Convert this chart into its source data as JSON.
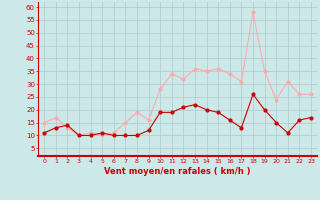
{
  "x": [
    0,
    1,
    2,
    3,
    4,
    5,
    6,
    7,
    8,
    9,
    10,
    11,
    12,
    13,
    14,
    15,
    16,
    17,
    18,
    19,
    20,
    21,
    22,
    23
  ],
  "wind_avg": [
    11,
    13,
    14,
    10,
    10,
    11,
    10,
    10,
    10,
    12,
    19,
    19,
    21,
    22,
    20,
    19,
    16,
    13,
    26,
    20,
    15,
    11,
    16,
    17
  ],
  "wind_gust": [
    15,
    17,
    13,
    10,
    11,
    10,
    11,
    15,
    19,
    16,
    28,
    34,
    32,
    36,
    35,
    36,
    34,
    31,
    58,
    35,
    24,
    31,
    26,
    26
  ],
  "avg_color": "#cc0000",
  "gust_color": "#ffaaaa",
  "bg_color": "#cce8e8",
  "grid_color": "#aacccc",
  "xlabel": "Vent moyen/en rafales ( km/h )",
  "ylabel_ticks": [
    5,
    10,
    15,
    20,
    25,
    30,
    35,
    40,
    45,
    50,
    55,
    60
  ],
  "ylim": [
    2,
    62
  ],
  "xlim": [
    -0.5,
    23.5
  ],
  "xlabel_color": "#cc0000",
  "axis_color": "#cc0000",
  "tick_color": "#cc0000"
}
